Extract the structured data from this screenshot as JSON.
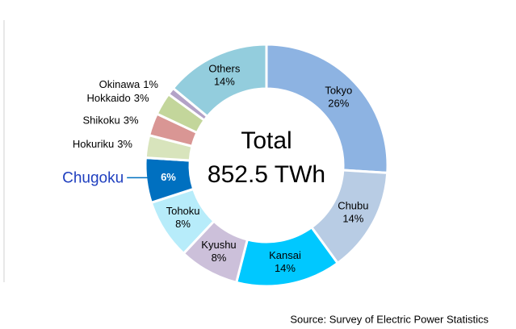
{
  "chart_data": {
    "type": "donut",
    "categories": [
      "Tokyo",
      "Chubu",
      "Kansai",
      "Kyushu",
      "Tohoku",
      "Chugoku",
      "Hokuriku",
      "Shikoku",
      "Hokkaido",
      "Okinawa",
      "Others"
    ],
    "values": [
      26,
      14,
      14,
      8,
      8,
      6,
      3,
      3,
      3,
      1,
      14
    ],
    "value_labels": [
      "26%",
      "14%",
      "14%",
      "8%",
      "8%",
      "6%",
      "3%",
      "3%",
      "3%",
      "1%",
      "14%"
    ],
    "colors": [
      "#8db3e2",
      "#b8cce4",
      "#00c8ff",
      "#ccc0da",
      "#b7ecfa",
      "#0070c0",
      "#d8e4bc",
      "#d99694",
      "#c3d69b",
      "#b3a2c7",
      "#93cddd"
    ],
    "highlight": "Chugoku",
    "center_text": [
      "Total",
      "852.5 TWh"
    ],
    "source": "Source: Survey of Electric Power Statistics"
  }
}
